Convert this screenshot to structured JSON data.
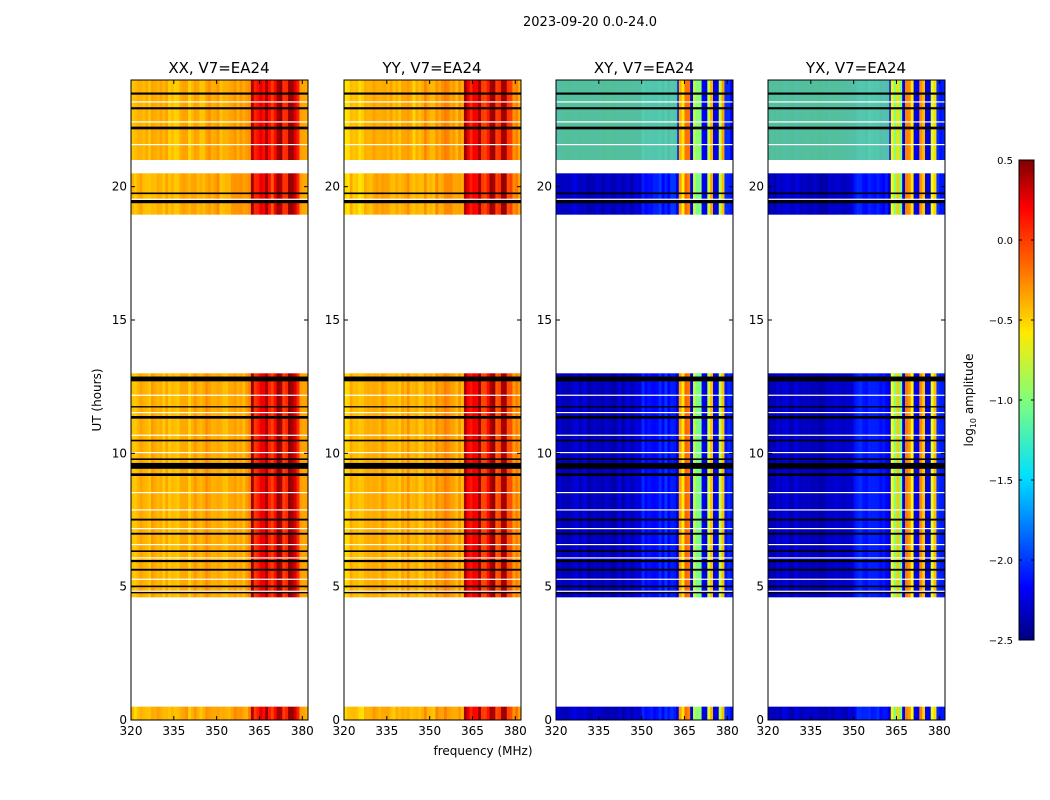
{
  "chart_data": {
    "type": "heatmap",
    "suptitle": "2023-09-20 0.0-24.0",
    "xlabel": "frequency (MHz)",
    "ylabel": "UT (hours)",
    "xlim": [
      320,
      382
    ],
    "ylim": [
      0,
      24
    ],
    "xticks": [
      320,
      335,
      350,
      365,
      380
    ],
    "yticks": [
      0,
      5,
      10,
      15,
      20
    ],
    "rfi_band_mhz": [
      362.5,
      378.5
    ],
    "rfi_channel_edges_mhz": [
      362.5,
      367.5,
      372.0,
      376.0
    ],
    "coverage_hours": [
      [
        0.0,
        0.5
      ],
      [
        4.6,
        13.0
      ],
      [
        18.95,
        20.5
      ],
      [
        21.0,
        24.0
      ]
    ],
    "flagged_hours": [
      {
        "y": 4.75,
        "h": 0.08
      },
      {
        "y": 4.98,
        "h": 0.06
      },
      {
        "y": 5.6,
        "h": 0.07
      },
      {
        "y": 5.92,
        "h": 0.08
      },
      {
        "y": 6.3,
        "h": 0.06
      },
      {
        "y": 6.95,
        "h": 0.07
      },
      {
        "y": 7.48,
        "h": 0.07
      },
      {
        "y": 9.15,
        "h": 0.1
      },
      {
        "y": 9.42,
        "h": 0.22
      },
      {
        "y": 9.75,
        "h": 0.06
      },
      {
        "y": 10.45,
        "h": 0.06
      },
      {
        "y": 11.3,
        "h": 0.1
      },
      {
        "y": 11.72,
        "h": 0.05
      },
      {
        "y": 12.7,
        "h": 0.18
      },
      {
        "y": 19.38,
        "h": 0.12
      },
      {
        "y": 19.72,
        "h": 0.06
      },
      {
        "y": 22.15,
        "h": 0.1
      },
      {
        "y": 22.9,
        "h": 0.08
      },
      {
        "y": 23.45,
        "h": 0.08
      }
    ],
    "colorbar": {
      "label": "log10 amplitude",
      "ticks": [
        "0.5",
        "0.0",
        "−0.5",
        "−1.0",
        "−1.5",
        "−2.0",
        "−2.5"
      ],
      "tick_values": [
        0.5,
        0.0,
        -0.5,
        -1.0,
        -1.5,
        -2.0,
        -2.5
      ],
      "range": [
        -2.5,
        0.5
      ]
    },
    "panels": [
      {
        "id": "xx",
        "title": "XX, V7=EA24",
        "baseline_log_amp": -0.45,
        "rfi_log_amp": 0.05
      },
      {
        "id": "yy",
        "title": "YY, V7=EA24",
        "baseline_log_amp": -0.45,
        "rfi_log_amp": 0.05
      },
      {
        "id": "xy",
        "title": "XY, V7=EA24",
        "baseline_log_amp": -2.3,
        "rfi_log_amp": -0.6
      },
      {
        "id": "yx",
        "title": "YX, V7=EA24",
        "baseline_log_amp": -2.3,
        "rfi_log_amp": -0.6
      }
    ]
  }
}
